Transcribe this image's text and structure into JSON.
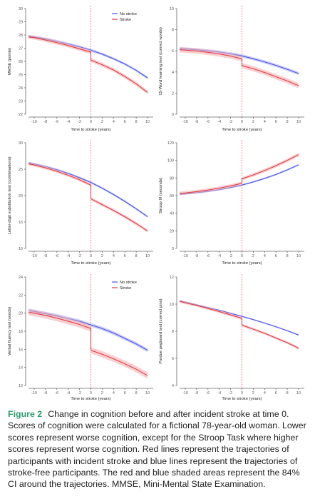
{
  "figure": {
    "label": "Figure 2",
    "caption": "Change in cognition before and after incident stroke at time 0. Scores of cognition were calculated for a fictional 78-year-old woman. Lower scores represent worse cognition, except for the Stroop Task where higher scores represent worse cognition. Red lines represent the trajectories of participants with incident stroke and blue lines represent the trajectories of stroke-free participants. The red and blue shaded areas represent the 84% CI around the trajectories. MMSE, Mini-Mental State Examination."
  },
  "colors": {
    "no_stroke": "#4a55e6",
    "stroke": "#e33a43",
    "no_stroke_band": "#aab0f3",
    "stroke_band": "#f5b0b3",
    "axis": "#666666",
    "vline": "#e05050"
  },
  "chart_data": [
    {
      "type": "line",
      "ylabel": "MMSE (points)",
      "xlabel": "Time to stroke (years)",
      "ylim": [
        22,
        30
      ],
      "yticks": [
        22,
        23,
        24,
        25,
        26,
        27,
        28,
        29,
        30
      ],
      "xlim": [
        -11,
        11
      ],
      "xticks": [
        -10,
        -8,
        -6,
        -4,
        -2,
        0,
        2,
        4,
        6,
        8,
        10
      ],
      "legend": "top-right",
      "series": [
        {
          "name": "No stroke",
          "x": [
            -11,
            -10,
            -8,
            -6,
            -4,
            -2,
            0,
            2,
            4,
            6,
            8,
            10
          ],
          "y": [
            27.9,
            27.85,
            27.7,
            27.52,
            27.32,
            27.1,
            26.85,
            26.55,
            26.2,
            25.8,
            25.32,
            24.75
          ],
          "band": 0.1
        },
        {
          "name": "Stroke",
          "x": [
            -11,
            -10,
            -8,
            -6,
            -4,
            -2,
            0,
            0,
            2,
            4,
            6,
            8,
            10
          ],
          "y": [
            27.85,
            27.8,
            27.62,
            27.42,
            27.2,
            26.95,
            26.7,
            26.1,
            25.75,
            25.35,
            24.85,
            24.3,
            23.65
          ],
          "band": 0.15
        }
      ]
    },
    {
      "type": "line",
      "ylabel": "15-Word learning test (correct words)",
      "xlabel": "Time to stroke (years)",
      "ylim": [
        0,
        10
      ],
      "yticks": [
        0,
        2,
        4,
        6,
        8,
        10
      ],
      "xlim": [
        -11,
        11
      ],
      "xticks": [
        -10,
        -8,
        -6,
        -4,
        -2,
        0,
        2,
        4,
        6,
        8,
        10
      ],
      "series": [
        {
          "name": "No stroke",
          "x": [
            -11,
            -10,
            -8,
            -6,
            -4,
            -2,
            0,
            2,
            4,
            6,
            8,
            10
          ],
          "y": [
            6.2,
            6.18,
            6.1,
            6.0,
            5.88,
            5.72,
            5.52,
            5.25,
            4.95,
            4.62,
            4.25,
            3.85
          ],
          "band": 0.15
        },
        {
          "name": "Stroke",
          "x": [
            -11,
            -10,
            -8,
            -6,
            -4,
            -2,
            0,
            0,
            2,
            4,
            6,
            8,
            10
          ],
          "y": [
            6.1,
            6.07,
            5.98,
            5.86,
            5.7,
            5.5,
            5.25,
            4.6,
            4.3,
            3.95,
            3.55,
            3.15,
            2.7
          ],
          "band": 0.25
        }
      ]
    },
    {
      "type": "line",
      "ylabel": "Letter-digit substitution test (combinations)",
      "xlabel": "Time to stroke (years)",
      "ylim": [
        10,
        30
      ],
      "yticks": [
        10,
        15,
        20,
        25,
        30
      ],
      "xlim": [
        -11,
        11
      ],
      "xticks": [
        -10,
        -8,
        -6,
        -4,
        -2,
        0,
        2,
        4,
        6,
        8,
        10
      ],
      "series": [
        {
          "name": "No stroke",
          "x": [
            -11,
            -10,
            -8,
            -6,
            -4,
            -2,
            0,
            2,
            4,
            6,
            8,
            10
          ],
          "y": [
            26.2,
            26.0,
            25.5,
            24.9,
            24.2,
            23.4,
            22.5,
            21.4,
            20.2,
            18.9,
            17.5,
            16.0
          ],
          "band": 0.2
        },
        {
          "name": "Stroke",
          "x": [
            -11,
            -10,
            -8,
            -6,
            -4,
            -2,
            0,
            0,
            2,
            4,
            6,
            8,
            10
          ],
          "y": [
            26.0,
            25.8,
            25.25,
            24.6,
            23.85,
            23.0,
            22.0,
            19.4,
            18.3,
            17.2,
            16.0,
            14.7,
            13.3
          ],
          "band": 0.3
        }
      ]
    },
    {
      "type": "line",
      "ylabel": "Stroop III (seconds)",
      "xlabel": "Time to stroke (years)",
      "ylim": [
        0,
        120
      ],
      "yticks": [
        0,
        20,
        40,
        60,
        80,
        100,
        120
      ],
      "xlim": [
        -11,
        11
      ],
      "xticks": [
        -10,
        -8,
        -6,
        -4,
        -2,
        0,
        2,
        4,
        6,
        8,
        10
      ],
      "series": [
        {
          "name": "No stroke",
          "x": [
            -11,
            -10,
            -8,
            -6,
            -4,
            -2,
            0,
            2,
            4,
            6,
            8,
            10
          ],
          "y": [
            61.5,
            62.0,
            63.2,
            64.8,
            66.8,
            69.2,
            72.0,
            75.5,
            79.5,
            84.0,
            89.2,
            95.0
          ],
          "band": 1.0
        },
        {
          "name": "Stroke",
          "x": [
            -11,
            -10,
            -8,
            -6,
            -4,
            -2,
            0,
            0,
            2,
            4,
            6,
            8,
            10
          ],
          "y": [
            62.5,
            63.0,
            64.5,
            66.3,
            68.5,
            71.0,
            74.0,
            79.0,
            83.5,
            88.5,
            94.0,
            100.0,
            106.5
          ],
          "band": 2.0
        }
      ]
    },
    {
      "type": "line",
      "ylabel": "Verbal fluency test (words)",
      "xlabel": "Time to stroke (years)",
      "ylim": [
        12,
        24
      ],
      "yticks": [
        12,
        14,
        16,
        18,
        20,
        22,
        24
      ],
      "xlim": [
        -11,
        11
      ],
      "xticks": [
        -10,
        -8,
        -6,
        -4,
        -2,
        0,
        2,
        4,
        6,
        8,
        10
      ],
      "legend": "top-right",
      "series": [
        {
          "name": "No stroke",
          "x": [
            -11,
            -10,
            -8,
            -6,
            -4,
            -2,
            0,
            2,
            4,
            6,
            8,
            10
          ],
          "y": [
            20.3,
            20.2,
            19.95,
            19.7,
            19.4,
            19.1,
            18.7,
            18.3,
            17.8,
            17.2,
            16.6,
            15.9
          ],
          "band": 0.2
        },
        {
          "name": "Stroke",
          "x": [
            -11,
            -10,
            -8,
            -6,
            -4,
            -2,
            0,
            0,
            2,
            4,
            6,
            8,
            10
          ],
          "y": [
            20.1,
            20.0,
            19.75,
            19.45,
            19.1,
            18.75,
            18.3,
            15.9,
            15.45,
            14.95,
            14.4,
            13.8,
            13.1
          ],
          "band": 0.35
        }
      ]
    },
    {
      "type": "line",
      "ylabel": "Purdue pegboard test (correct pins)",
      "xlabel": "Time to stroke (years)",
      "ylim": [
        4,
        12
      ],
      "yticks": [
        4,
        6,
        8,
        10,
        12
      ],
      "xlim": [
        -11,
        11
      ],
      "xticks": [
        -10,
        -8,
        -6,
        -4,
        -2,
        0,
        2,
        4,
        6,
        8,
        10
      ],
      "series": [
        {
          "name": "No stroke",
          "x": [
            -11,
            -10,
            -8,
            -6,
            -4,
            -2,
            0,
            2,
            4,
            6,
            8,
            10
          ],
          "y": [
            10.25,
            10.15,
            9.95,
            9.75,
            9.55,
            9.32,
            9.1,
            8.86,
            8.6,
            8.33,
            8.04,
            7.72
          ],
          "band": 0.05
        },
        {
          "name": "Stroke",
          "x": [
            -11,
            -10,
            -8,
            -6,
            -4,
            -2,
            0,
            0,
            2,
            4,
            6,
            8,
            10
          ],
          "y": [
            10.2,
            10.1,
            9.9,
            9.68,
            9.45,
            9.2,
            8.95,
            8.45,
            8.15,
            7.85,
            7.5,
            7.15,
            6.75
          ],
          "band": 0.1
        }
      ]
    }
  ]
}
